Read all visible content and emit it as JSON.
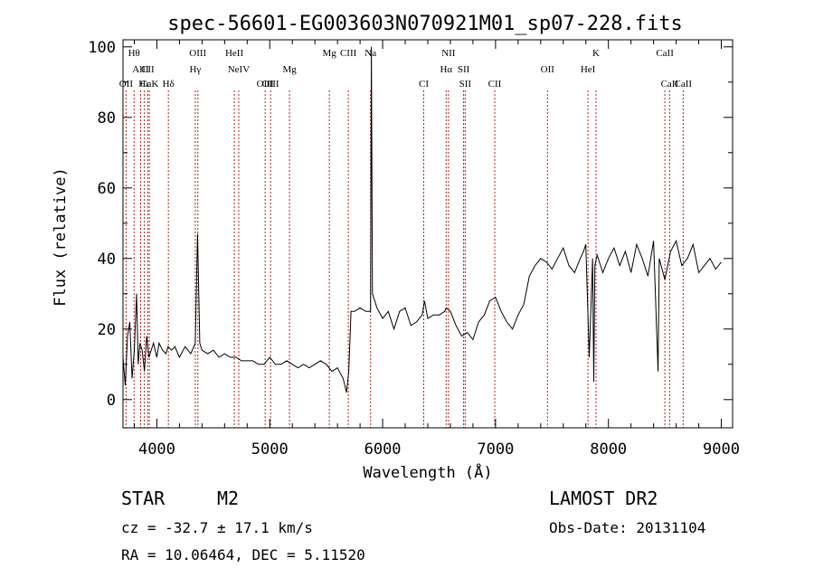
{
  "chart_data": {
    "type": "line",
    "title": "spec-56601-EG003603N070921M01_sp07-228.fits",
    "xlabel": "Wavelength (Å)",
    "ylabel": "Flux (relative)",
    "xlim": [
      3700,
      9100
    ],
    "ylim": [
      -8,
      102
    ],
    "x_ticks": [
      4000,
      5000,
      6000,
      7000,
      8000,
      9000
    ],
    "y_ticks": [
      0,
      20,
      40,
      60,
      80,
      100
    ],
    "grid": false,
    "line_color": "#000000",
    "marker_line_color": "#b22222",
    "series": [
      {
        "x": [
          3700,
          3720,
          3740,
          3760,
          3780,
          3800,
          3820,
          3835,
          3850,
          3870,
          3890,
          3910,
          3930,
          3950,
          3970,
          4000,
          4020,
          4050,
          4080,
          4100,
          4130,
          4160,
          4200,
          4250,
          4300,
          4340,
          4360,
          4380,
          4400,
          4450,
          4500,
          4550,
          4600,
          4650,
          4700,
          4750,
          4800,
          4850,
          4900,
          4950,
          5000,
          5050,
          5100,
          5150,
          5200,
          5250,
          5300,
          5350,
          5400,
          5450,
          5500,
          5550,
          5600,
          5650,
          5680,
          5700,
          5720,
          5750,
          5800,
          5850,
          5880,
          5893,
          5900,
          5910,
          5950,
          6000,
          6050,
          6100,
          6150,
          6200,
          6250,
          6300,
          6350,
          6370,
          6400,
          6450,
          6500,
          6550,
          6563,
          6600,
          6650,
          6700,
          6750,
          6800,
          6850,
          6900,
          6950,
          7000,
          7050,
          7100,
          7150,
          7200,
          7250,
          7300,
          7350,
          7400,
          7450,
          7500,
          7550,
          7600,
          7650,
          7700,
          7750,
          7780,
          7800,
          7830,
          7860,
          7870,
          7880,
          7900,
          7950,
          8000,
          8050,
          8100,
          8150,
          8200,
          8250,
          8300,
          8350,
          8400,
          8440,
          8450,
          8500,
          8550,
          8600,
          8650,
          8700,
          8750,
          8800,
          8850,
          8900,
          8950,
          9000
        ],
        "values": [
          12,
          4,
          18,
          22,
          6,
          14,
          30,
          10,
          16,
          14,
          8,
          18,
          12,
          14,
          16,
          12,
          16,
          14,
          13,
          15,
          14,
          15,
          12,
          15,
          13,
          16,
          47,
          16,
          14,
          13,
          14,
          12,
          13,
          12,
          12,
          11,
          11,
          11,
          10,
          10,
          12,
          10,
          10,
          11,
          10,
          9,
          10,
          9,
          10,
          11,
          10,
          8,
          9,
          6,
          2,
          8,
          25,
          25,
          26,
          25,
          25,
          25,
          100,
          30,
          26,
          23,
          25,
          20,
          25,
          26,
          21,
          22,
          24,
          28,
          23,
          24,
          24,
          25,
          26,
          25,
          21,
          18,
          19,
          17,
          22,
          24,
          28,
          29,
          25,
          22,
          20,
          24,
          27,
          35,
          38,
          40,
          39,
          37,
          40,
          43,
          38,
          36,
          40,
          42,
          44,
          12,
          40,
          5,
          38,
          41,
          36,
          40,
          43,
          38,
          42,
          36,
          44,
          40,
          35,
          45,
          8,
          40,
          34,
          42,
          45,
          38,
          40,
          44,
          36,
          38,
          40,
          37,
          39
        ]
      }
    ],
    "line_markers": [
      {
        "label": "Hθ",
        "x": 3798,
        "row": 0
      },
      {
        "label": "AlII",
        "x": 3856,
        "row": 1
      },
      {
        "label": "OII",
        "x": 3727,
        "row": 2
      },
      {
        "label": "Hε",
        "x": 3889,
        "row": 2
      },
      {
        "label": "Hδ",
        "x": 4102,
        "row": 2
      },
      {
        "label": "CII",
        "x": 3919,
        "row": 1
      },
      {
        "label": "CaK",
        "x": 3934,
        "row": 2
      },
      {
        "label": "OIII",
        "x": 4363,
        "row": 0
      },
      {
        "label": "Hγ",
        "x": 4340,
        "row": 1
      },
      {
        "label": "HeII",
        "x": 4686,
        "row": 0
      },
      {
        "label": "NeIV",
        "x": 4725,
        "row": 1
      },
      {
        "label": "OIII",
        "x": 4959,
        "row": 2
      },
      {
        "label": "OIII",
        "x": 5007,
        "row": 2
      },
      {
        "label": "Mg",
        "x": 5175,
        "row": 1
      },
      {
        "label": "Mg",
        "x": 5528,
        "row": 0
      },
      {
        "label": "CIII",
        "x": 5696,
        "row": 0
      },
      {
        "label": "Na",
        "x": 5893,
        "row": 0
      },
      {
        "label": "CI",
        "x": 6364,
        "row": 2
      },
      {
        "label": "NII",
        "x": 6583,
        "row": 0
      },
      {
        "label": "Hα",
        "x": 6563,
        "row": 1
      },
      {
        "label": "SII",
        "x": 6717,
        "row": 1
      },
      {
        "label": "SII",
        "x": 6731,
        "row": 2
      },
      {
        "label": "CII",
        "x": 6993,
        "row": 2
      },
      {
        "label": "OII",
        "x": 7460,
        "row": 1
      },
      {
        "label": "K",
        "x": 7890,
        "row": 0
      },
      {
        "label": "HeI",
        "x": 7819,
        "row": 1
      },
      {
        "label": "CaII",
        "x": 8500,
        "row": 0
      },
      {
        "label": "CaII",
        "x": 8542,
        "row": 2
      },
      {
        "label": "CaII",
        "x": 8662,
        "row": 2
      }
    ]
  },
  "info": {
    "class_label": "STAR",
    "subclass": "M2",
    "survey": "LAMOST DR2",
    "cz_text": "cz = -32.7 ± 17.1 km/s",
    "obs_date": "Obs-Date: 20131104",
    "radec_text": "RA =  10.06464, DEC =   5.11520"
  }
}
